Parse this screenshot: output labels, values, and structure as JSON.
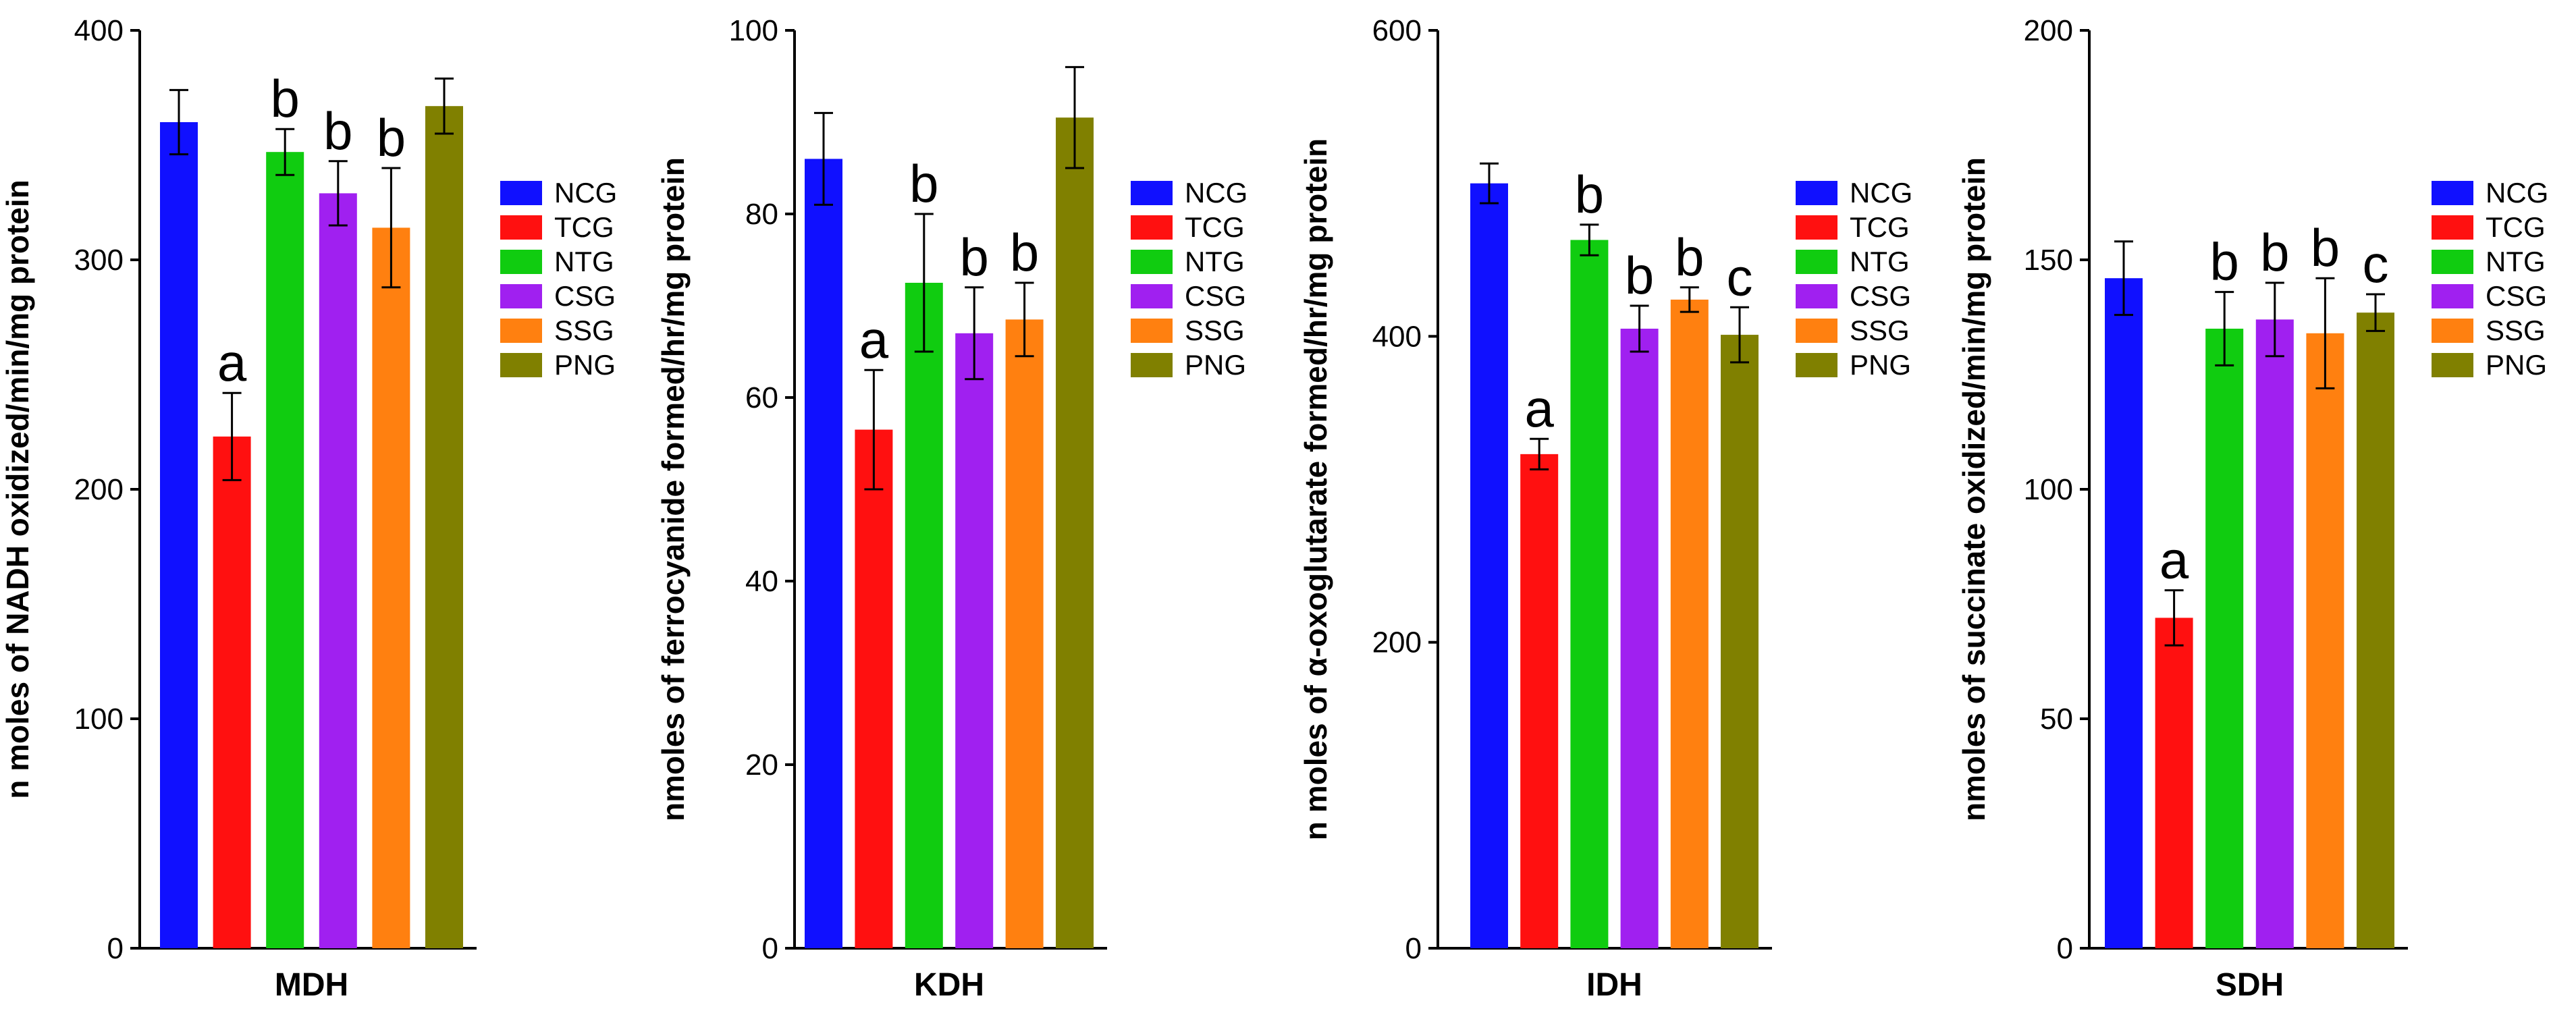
{
  "colors": {
    "NCG": "#1010ff",
    "TCG": "#ff1010",
    "NTG": "#10cc10",
    "CSG": "#a020f0",
    "SSG": "#ff8010",
    "PNG": "#808000"
  },
  "chart_data": [
    {
      "type": "bar",
      "xlabel": "MDH",
      "ylabel": "n moles of NADH oxidized/min/mg protein",
      "ylim": [
        0,
        400
      ],
      "yticks": [
        0,
        100,
        200,
        300,
        400
      ],
      "categories": [
        "NCG",
        "TCG",
        "NTG",
        "CSG",
        "SSG",
        "PNG"
      ],
      "values": [
        360,
        223,
        347,
        329,
        314,
        367
      ],
      "errors": [
        14,
        19,
        10,
        14,
        26,
        12
      ],
      "sig_labels": [
        "",
        "a",
        "b",
        "b",
        "b",
        ""
      ],
      "legend": [
        "NCG",
        "TCG",
        "NTG",
        "CSG",
        "SSG",
        "PNG"
      ]
    },
    {
      "type": "bar",
      "xlabel": "KDH",
      "ylabel": "nmoles of ferrocyanide formed/hr/mg protein",
      "ylim": [
        0,
        100
      ],
      "yticks": [
        0,
        20,
        40,
        60,
        80,
        100
      ],
      "categories": [
        "NCG",
        "TCG",
        "NTG",
        "CSG",
        "SSG",
        "PNG"
      ],
      "values": [
        86,
        56.5,
        72.5,
        67,
        68.5,
        90.5
      ],
      "errors": [
        5,
        6.5,
        7.5,
        5,
        4,
        5.5
      ],
      "sig_labels": [
        "",
        "a",
        "b",
        "b",
        "b",
        ""
      ],
      "legend": [
        "NCG",
        "TCG",
        "NTG",
        "CSG",
        "SSG",
        "PNG"
      ]
    },
    {
      "type": "bar",
      "xlabel": "IDH",
      "ylabel": "n moles of α-oxoglutarate formed/hr/mg protein",
      "ylim": [
        0,
        600
      ],
      "yticks": [
        0,
        200,
        400,
        600
      ],
      "categories": [
        "NCG",
        "TCG",
        "NTG",
        "CSG",
        "SSG",
        "PNG"
      ],
      "values": [
        500,
        323,
        463,
        405,
        424,
        401
      ],
      "errors": [
        13,
        10,
        10,
        15,
        8,
        18
      ],
      "sig_labels": [
        "",
        "a",
        "b",
        "b",
        "b",
        "c"
      ],
      "legend": [
        "NCG",
        "TCG",
        "NTG",
        "CSG",
        "SSG",
        "PNG"
      ]
    },
    {
      "type": "bar",
      "xlabel": "SDH",
      "ylabel": "nmoles of succinate oxidized/min/mg protein",
      "ylim": [
        0,
        200
      ],
      "yticks": [
        0,
        50,
        100,
        150,
        200
      ],
      "categories": [
        "NCG",
        "TCG",
        "NTG",
        "CSG",
        "SSG",
        "PNG"
      ],
      "values": [
        146,
        72,
        135,
        137,
        134,
        138.5
      ],
      "errors": [
        8,
        6,
        8,
        8,
        12,
        4
      ],
      "sig_labels": [
        "",
        "a",
        "b",
        "b",
        "b",
        "c"
      ],
      "legend": [
        "NCG",
        "TCG",
        "NTG",
        "CSG",
        "SSG",
        "PNG"
      ]
    }
  ]
}
